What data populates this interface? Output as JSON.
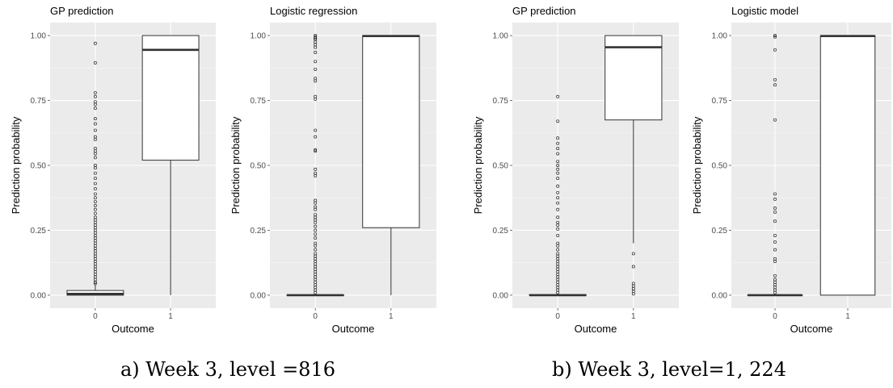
{
  "captions": [
    "a) Week 3, level =816",
    "b) Week 3, level=1, 224"
  ],
  "chart_data": [
    {
      "type": "boxplot",
      "title": "GP prediction",
      "xlabel": "Outcome",
      "ylabel": "Prediction probability",
      "categories": [
        "0",
        "1"
      ],
      "yticks": [
        0,
        0.25,
        0.5,
        0.75,
        1
      ],
      "ytick_labels": [
        "0.00",
        "0.25",
        "0.50",
        "0.75",
        "1.00"
      ],
      "ylim": [
        -0.05,
        1.05
      ],
      "boxes": [
        {
          "category": "0",
          "q1": 0.0,
          "median": 0.005,
          "q3": 0.018,
          "whisker_low": 0.0,
          "whisker_high": 0.04,
          "outliers": [
            0.97,
            0.895,
            0.78,
            0.765,
            0.745,
            0.735,
            0.72,
            0.68,
            0.66,
            0.635,
            0.61,
            0.6,
            0.565,
            0.555,
            0.545,
            0.53,
            0.5,
            0.49,
            0.47,
            0.45,
            0.43,
            0.41,
            0.39,
            0.375,
            0.36,
            0.345,
            0.33,
            0.315,
            0.3,
            0.29,
            0.28,
            0.27,
            0.26,
            0.25,
            0.24,
            0.23,
            0.22,
            0.21,
            0.2,
            0.19,
            0.18,
            0.17,
            0.16,
            0.15,
            0.14,
            0.13,
            0.12,
            0.11,
            0.1,
            0.09,
            0.08,
            0.07,
            0.06,
            0.05,
            0.045
          ]
        },
        {
          "category": "1",
          "q1": 0.52,
          "median": 0.945,
          "q3": 1.0,
          "whisker_low": 0.0,
          "whisker_high": 1.0,
          "outliers": []
        }
      ]
    },
    {
      "type": "boxplot",
      "title": "Logistic regression",
      "xlabel": "Outcome",
      "ylabel": "Prediction probability",
      "categories": [
        "0",
        "1"
      ],
      "yticks": [
        0,
        0.25,
        0.5,
        0.75,
        1
      ],
      "ytick_labels": [
        "0.00",
        "0.25",
        "0.50",
        "0.75",
        "1.00"
      ],
      "ylim": [
        -0.05,
        1.05
      ],
      "boxes": [
        {
          "category": "0",
          "q1": 0.0,
          "median": 0.0,
          "q3": 0.001,
          "whisker_low": 0.0,
          "whisker_high": 0.002,
          "outliers": [
            1.0,
            0.995,
            0.99,
            0.985,
            0.975,
            0.965,
            0.955,
            0.935,
            0.9,
            0.87,
            0.835,
            0.825,
            0.765,
            0.755,
            0.635,
            0.61,
            0.56,
            0.555,
            0.485,
            0.47,
            0.46,
            0.365,
            0.355,
            0.34,
            0.33,
            0.31,
            0.3,
            0.29,
            0.28,
            0.265,
            0.25,
            0.235,
            0.22,
            0.2,
            0.19,
            0.175,
            0.16,
            0.15,
            0.14,
            0.13,
            0.12,
            0.11,
            0.1,
            0.09,
            0.08,
            0.07,
            0.06,
            0.05,
            0.04,
            0.03,
            0.02,
            0.01
          ]
        },
        {
          "category": "1",
          "q1": 0.26,
          "median": 0.998,
          "q3": 1.0,
          "whisker_low": 0.0,
          "whisker_high": 1.0,
          "outliers": []
        }
      ]
    },
    {
      "type": "boxplot",
      "title": "GP prediction",
      "xlabel": "Outcome",
      "ylabel": "Prediction probability",
      "categories": [
        "0",
        "1"
      ],
      "yticks": [
        0,
        0.25,
        0.5,
        0.75,
        1
      ],
      "ytick_labels": [
        "0.00",
        "0.25",
        "0.50",
        "0.75",
        "1.00"
      ],
      "ylim": [
        -0.05,
        1.05
      ],
      "boxes": [
        {
          "category": "0",
          "q1": 0.0,
          "median": 0.0,
          "q3": 0.002,
          "whisker_low": 0.0,
          "whisker_high": 0.004,
          "outliers": [
            0.765,
            0.67,
            0.605,
            0.585,
            0.565,
            0.545,
            0.515,
            0.5,
            0.485,
            0.47,
            0.45,
            0.42,
            0.395,
            0.375,
            0.355,
            0.33,
            0.3,
            0.28,
            0.27,
            0.255,
            0.23,
            0.2,
            0.19,
            0.175,
            0.16,
            0.15,
            0.14,
            0.13,
            0.12,
            0.11,
            0.1,
            0.09,
            0.08,
            0.07,
            0.06,
            0.05,
            0.04,
            0.03,
            0.02,
            0.01
          ]
        },
        {
          "category": "1",
          "q1": 0.675,
          "median": 0.955,
          "q3": 1.0,
          "whisker_low": 0.2,
          "whisker_high": 1.0,
          "outliers": [
            0.16,
            0.11,
            0.045,
            0.035,
            0.025,
            0.015,
            0.005
          ]
        }
      ]
    },
    {
      "type": "boxplot",
      "title": "Logistic model",
      "xlabel": "Outcome",
      "ylabel": "Prediction probability",
      "categories": [
        "0",
        "1"
      ],
      "yticks": [
        0,
        0.25,
        0.5,
        0.75,
        1
      ],
      "ytick_labels": [
        "0.00",
        "0.25",
        "0.50",
        "0.75",
        "1.00"
      ],
      "ylim": [
        -0.05,
        1.05
      ],
      "boxes": [
        {
          "category": "0",
          "q1": 0.0,
          "median": 0.0,
          "q3": 0.001,
          "whisker_low": 0.0,
          "whisker_high": 0.002,
          "outliers": [
            1.0,
            0.995,
            0.945,
            0.83,
            0.81,
            0.675,
            0.39,
            0.37,
            0.335,
            0.32,
            0.285,
            0.23,
            0.205,
            0.175,
            0.14,
            0.13,
            0.075,
            0.06,
            0.05,
            0.04,
            0.03,
            0.02,
            0.01
          ]
        },
        {
          "category": "1",
          "q1": 0.0,
          "median": 0.998,
          "q3": 1.0,
          "whisker_low": 0.0,
          "whisker_high": 1.0,
          "outliers": []
        }
      ]
    }
  ]
}
